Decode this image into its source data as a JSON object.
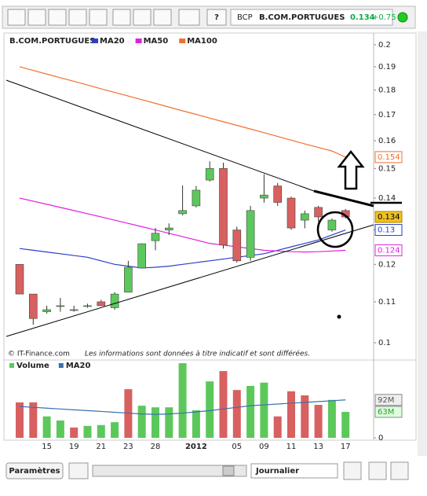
{
  "toolbar": {
    "symbol": "BCP",
    "name": "B.COM.PORTUGUES",
    "price": "0.134",
    "change": "+0.75"
  },
  "chart_data": [
    {
      "type": "candlestick",
      "title": "B.COM.PORTUGUES",
      "log_scale": true,
      "open": [
        0.12,
        0.112,
        0.1075,
        0.109,
        0.108,
        0.109,
        0.11,
        0.1085,
        0.1125,
        0.119,
        0.1268,
        0.13,
        0.135,
        0.1375,
        0.146,
        0.15,
        0.13,
        0.122,
        0.14,
        0.144,
        0.14,
        0.133,
        0.137,
        0.13,
        0.136
      ],
      "high": [
        0.12,
        0.112,
        0.109,
        0.111,
        0.109,
        0.1095,
        0.1105,
        0.1125,
        0.121,
        0.126,
        0.1306,
        0.132,
        0.1442,
        0.144,
        0.1525,
        0.152,
        0.131,
        0.1375,
        0.148,
        0.145,
        0.1405,
        0.136,
        0.1375,
        0.1335,
        0.1365
      ],
      "low": [
        0.112,
        0.1043,
        0.107,
        0.1075,
        0.1075,
        0.1085,
        0.109,
        0.108,
        0.1125,
        0.119,
        0.124,
        0.1285,
        0.1345,
        0.137,
        0.1455,
        0.1245,
        0.1205,
        0.121,
        0.1385,
        0.1375,
        0.13,
        0.1305,
        0.1325,
        0.1295,
        0.1335
      ],
      "close": [
        0.112,
        0.1058,
        0.108,
        0.109,
        0.108,
        0.109,
        0.109,
        0.112,
        0.1192,
        0.1259,
        0.129,
        0.1306,
        0.136,
        0.1426,
        0.15,
        0.1255,
        0.121,
        0.136,
        0.141,
        0.1386,
        0.1306,
        0.135,
        0.134,
        0.133,
        0.134
      ],
      "color_up": "#5cc85c",
      "color_down": "#d86060",
      "flag": "0.134",
      "series": [
        {
          "name": "MA20",
          "color": "#2a3fc8",
          "flag": "0.13",
          "values": [
            0.1245,
            0.124,
            0.1235,
            0.123,
            0.1225,
            0.122,
            0.121,
            0.12,
            0.1195,
            0.119,
            0.1192,
            0.1195,
            0.12,
            0.1205,
            0.121,
            0.1215,
            0.122,
            0.1225,
            0.123,
            0.124,
            0.125,
            0.126,
            0.127,
            0.1285,
            0.13
          ]
        },
        {
          "name": "MA50",
          "color": "#e020e0",
          "flag": "0.124",
          "values": [
            0.14,
            0.139,
            0.138,
            0.137,
            0.136,
            0.135,
            0.134,
            0.133,
            0.132,
            0.131,
            0.13,
            0.129,
            0.128,
            0.127,
            0.126,
            0.1255,
            0.125,
            0.1245,
            0.124,
            0.1238,
            0.1236,
            0.1235,
            0.1236,
            0.1238,
            0.124
          ]
        },
        {
          "name": "MA100",
          "color": "#f07030",
          "flag": "0.154",
          "values": [
            0.19,
            0.1884,
            0.1868,
            0.1852,
            0.1837,
            0.1821,
            0.1805,
            0.179,
            0.1775,
            0.176,
            0.1745,
            0.173,
            0.1715,
            0.1701,
            0.1686,
            0.1672,
            0.1658,
            0.1644,
            0.163,
            0.1616,
            0.1602,
            0.1588,
            0.1575,
            0.1562,
            0.154
          ]
        }
      ],
      "ylim": [
        0.0966,
        0.2044
      ],
      "yticks": [
        0.1,
        0.11,
        0.12,
        0.13,
        0.14,
        0.15,
        0.16,
        0.17,
        0.18,
        0.19,
        0.2
      ],
      "annotation": "© IT-Finance.com",
      "note": "Les informations sont données à titre indicatif et sont différées."
    },
    {
      "type": "bar",
      "categories": [
        null,
        null,
        "15",
        null,
        "19",
        null,
        "21",
        null,
        "23",
        null,
        "28",
        null,
        null,
        "2012",
        null,
        null,
        "05",
        null,
        "09",
        null,
        "11",
        null,
        "13",
        null,
        "17"
      ],
      "series": [
        {
          "name": "Volume",
          "flag": "63M",
          "values": [
            86,
            86,
            52,
            42,
            25,
            29,
            31,
            38,
            118,
            78,
            74,
            74,
            181,
            67,
            137,
            162,
            116,
            126,
            134,
            52,
            113,
            103,
            80,
            92,
            63
          ],
          "colors": [
            "#d86060",
            "#d86060",
            "#5cc85c",
            "#5cc85c",
            "#d86060",
            "#5cc85c",
            "#5cc85c",
            "#5cc85c",
            "#d86060",
            "#5cc85c",
            "#5cc85c",
            "#5cc85c",
            "#5cc85c",
            "#5cc85c",
            "#5cc85c",
            "#d86060",
            "#d86060",
            "#5cc85c",
            "#5cc85c",
            "#d86060",
            "#d86060",
            "#d86060",
            "#d86060",
            "#5cc85c",
            "#5cc85c"
          ]
        },
        {
          "name": "MA20",
          "color": "#3a70b0",
          "flag": "92M",
          "values": [
            76,
            74,
            72,
            70,
            68,
            66,
            64,
            62,
            60,
            58,
            57,
            58,
            60,
            63,
            66,
            70,
            74,
            78,
            80,
            82,
            84,
            86,
            88,
            90,
            92
          ]
        }
      ],
      "ylim": [
        0,
        185
      ],
      "yticks": [
        0
      ]
    }
  ],
  "footer": {
    "settings": "Paramètres",
    "period": "Journalier"
  }
}
